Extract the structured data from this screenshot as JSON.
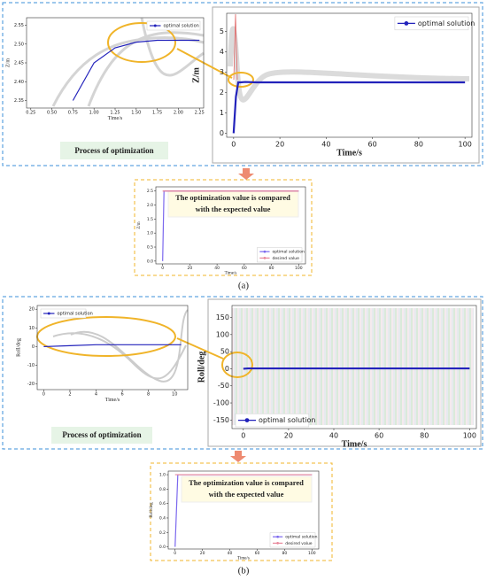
{
  "labels": {
    "process_a": "Process of optimization",
    "compare_a": [
      "The optimization value is compared",
      "with the expected value"
    ],
    "caption_a": "(a)",
    "process_b": "Process of optimization",
    "compare_b": [
      "The optimization value is compared",
      "with the expected value"
    ],
    "caption_b": "(b)"
  },
  "chart_data": [
    {
      "type": "line",
      "xlabel": "Time/s",
      "ylabel": "Z/m",
      "xlim": [
        0.2,
        2.3
      ],
      "ylim": [
        2.33,
        2.57
      ],
      "xticks": [
        {
          "value": 0.25,
          "label": "0.25"
        },
        {
          "value": 0.5,
          "label": "0.50"
        },
        {
          "value": 0.75,
          "label": "0.75"
        },
        {
          "value": 1,
          "label": "1.00"
        },
        {
          "value": 1.25,
          "label": "1.25"
        },
        {
          "value": 1.5,
          "label": "1.50"
        },
        {
          "value": 1.75,
          "label": "1.75"
        },
        {
          "value": 2,
          "label": "2.00"
        },
        {
          "value": 2.25,
          "label": "2.25"
        }
      ],
      "yticks": [
        {
          "value": 2.35,
          "label": "2.35"
        },
        {
          "value": 2.4,
          "label": "2.40"
        },
        {
          "value": 2.45,
          "label": "2.45"
        },
        {
          "value": 2.5,
          "label": "2.50"
        },
        {
          "value": 2.55,
          "label": "2.55"
        }
      ],
      "legend": "upper right",
      "series": [
        {
          "name": "optimal solution",
          "color": "#2222bb",
          "x": [
            0.75,
            1.0,
            1.25,
            1.5,
            1.75,
            2.0,
            2.25
          ],
          "values": [
            2.35,
            2.45,
            2.49,
            2.505,
            2.51,
            2.51,
            2.51
          ]
        }
      ]
    },
    {
      "type": "line",
      "xlabel": "Time/s",
      "ylabel": "Z/m",
      "xlim": [
        -3,
        103
      ],
      "ylim": [
        -0.2,
        5.9
      ],
      "xticks": [
        0,
        20,
        40,
        60,
        80,
        100
      ],
      "yticks": [
        0,
        1,
        2,
        3,
        4,
        5
      ],
      "legend": "upper right",
      "series": [
        {
          "name": "optimal solution",
          "color": "#2222bb",
          "x": [
            0,
            1,
            2,
            3,
            5,
            10,
            20,
            40,
            60,
            80,
            100
          ],
          "values": [
            0,
            1.8,
            2.5,
            2.5,
            2.52,
            2.5,
            2.5,
            2.5,
            2.5,
            2.5,
            2.5
          ]
        }
      ]
    },
    {
      "type": "line",
      "xlabel": "Time/s",
      "ylabel": "Z/m",
      "xlim": [
        -5,
        105
      ],
      "ylim": [
        -0.1,
        2.65
      ],
      "xticks": [
        0,
        20,
        40,
        60,
        80,
        100
      ],
      "yticks": [
        {
          "value": 0,
          "label": "0.0"
        },
        {
          "value": 0.5,
          "label": "0.5"
        },
        {
          "value": 1,
          "label": "1.0"
        },
        {
          "value": 1.5,
          "label": "1.5"
        },
        {
          "value": 2,
          "label": "2.0"
        },
        {
          "value": 2.5,
          "label": "2.5"
        }
      ],
      "legend": "lower right",
      "series": [
        {
          "name": "optimal solution",
          "color": "#7b68ee",
          "x": [
            0,
            1,
            2,
            100
          ],
          "values": [
            0,
            2.5,
            2.5,
            2.5
          ]
        },
        {
          "name": "desired value",
          "color": "#e8869a",
          "x": [
            0,
            100
          ],
          "values": [
            2.5,
            2.5
          ]
        }
      ]
    },
    {
      "type": "line",
      "xlabel": "Time/s",
      "ylabel": "Roll/deg",
      "xlim": [
        -0.5,
        11
      ],
      "ylim": [
        -23,
        22
      ],
      "xticks": [
        0,
        2,
        4,
        6,
        8,
        10
      ],
      "yticks": [
        -20,
        -10,
        0,
        10,
        20
      ],
      "legend": "upper left",
      "series": [
        {
          "name": "optimal solution",
          "color": "#2222bb",
          "x": [
            0,
            2,
            4,
            6,
            8,
            10,
            10.5
          ],
          "values": [
            0,
            0.5,
            1,
            1,
            1,
            1,
            1
          ]
        }
      ]
    },
    {
      "type": "line",
      "xlabel": "Time/s",
      "ylabel": "Roll/deg",
      "xlim": [
        -5,
        103
      ],
      "ylim": [
        -175,
        185
      ],
      "xticks": [
        0,
        20,
        40,
        60,
        80,
        100
      ],
      "yticks": [
        -150,
        -100,
        -50,
        0,
        50,
        100,
        150
      ],
      "legend": "lower left",
      "series": [
        {
          "name": "optimal solution",
          "color": "#2222bb",
          "x": [
            0,
            2,
            5,
            10,
            100
          ],
          "values": [
            0,
            1,
            1,
            1,
            1
          ]
        }
      ]
    },
    {
      "type": "line",
      "xlabel": "Time/s",
      "ylabel": "Roll/deg",
      "xlim": [
        -5,
        105
      ],
      "ylim": [
        -0.03,
        1.05
      ],
      "xticks": [
        0,
        20,
        40,
        60,
        80,
        100
      ],
      "yticks": [
        {
          "value": 0,
          "label": "0.0"
        },
        {
          "value": 0.2,
          "label": "0.2"
        },
        {
          "value": 0.4,
          "label": "0.4"
        },
        {
          "value": 0.6,
          "label": "0.6"
        },
        {
          "value": 0.8,
          "label": "0.8"
        },
        {
          "value": 1,
          "label": "1.0"
        }
      ],
      "legend": "lower right",
      "series": [
        {
          "name": "optimal solution",
          "color": "#7b68ee",
          "x": [
            0,
            2,
            5,
            100
          ],
          "values": [
            0,
            1,
            1,
            1
          ]
        },
        {
          "name": "desired value",
          "color": "#e8869a",
          "x": [
            0,
            100
          ],
          "values": [
            1,
            1
          ]
        }
      ]
    }
  ]
}
